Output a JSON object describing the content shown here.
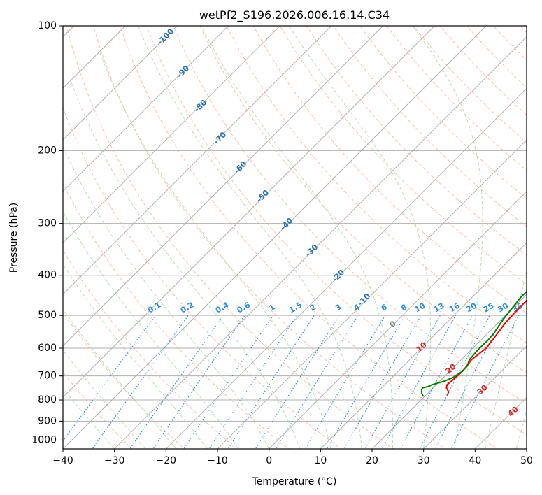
{
  "chart_data": {
    "type": "line",
    "title": "wetPf2_S196.2026.006.16.14.C34",
    "xlabel": "Temperature (°C)",
    "ylabel": "Pressure (hPa)",
    "xlim": [
      -40,
      50
    ],
    "ylim": [
      1050,
      100
    ],
    "x_ticks": [
      -40,
      -30,
      -20,
      -10,
      0,
      10,
      20,
      30,
      40,
      50
    ],
    "x_tick_labels": [
      "−40",
      "−30",
      "−20",
      "−10",
      "0",
      "10",
      "20",
      "30",
      "40",
      "50"
    ],
    "y_ticks": [
      100,
      200,
      300,
      400,
      500,
      600,
      700,
      800,
      900,
      1000
    ],
    "y_tick_labels": [
      "100",
      "200",
      "300",
      "400",
      "500",
      "600",
      "700",
      "800",
      "900",
      "1000"
    ],
    "isotherm_labels": [
      "-100",
      "-90",
      "-80",
      "-70",
      "-60",
      "-50",
      "-40",
      "-30",
      "-20",
      "-10"
    ],
    "mixing_ratio_labels": [
      "0.1",
      "0.2",
      "0.4",
      "0.6",
      "1",
      "1.5",
      "2",
      "3",
      "4",
      "6",
      "8",
      "10",
      "13",
      "16",
      "20",
      "25",
      "30",
      "36"
    ],
    "moist_adiabat_labels": [
      "0",
      "10",
      "20",
      "30",
      "40"
    ],
    "series": [
      {
        "name": "Temperature",
        "color": "#ff0000",
        "points": [
          [
            24.2,
            780
          ],
          [
            23.8,
            765
          ],
          [
            22.6,
            748
          ],
          [
            22.1,
            735
          ],
          [
            22.4,
            705
          ],
          [
            22.5,
            680
          ],
          [
            22.0,
            640
          ],
          [
            22.6,
            600
          ],
          [
            22.2,
            570
          ],
          [
            21.8,
            545
          ],
          [
            21.4,
            520
          ],
          [
            21.3,
            500
          ],
          [
            21.2,
            475
          ],
          [
            21.2,
            452
          ],
          [
            20.8,
            432
          ],
          [
            18.8,
            405
          ],
          [
            18.3,
            380
          ],
          [
            17.8,
            355
          ],
          [
            17.8,
            335
          ],
          [
            15.6,
            300
          ],
          [
            14.0,
            280
          ],
          [
            12.3,
            260
          ],
          [
            9.5,
            235
          ],
          [
            6.6,
            212
          ],
          [
            4.3,
            195
          ],
          [
            2.7,
            183
          ],
          [
            0.6,
            170
          ],
          [
            -1.1,
            160
          ],
          [
            -2.2,
            150
          ],
          [
            -3.1,
            140
          ],
          [
            -3.9,
            130
          ],
          [
            -4.3,
            120
          ],
          [
            -4.2,
            115
          ],
          [
            -3.9,
            110
          ],
          [
            -2.8,
            104
          ],
          [
            -2.0,
            100
          ]
        ]
      },
      {
        "name": "Dewpoint",
        "color": "#008000",
        "points": [
          [
            19.8,
            785
          ],
          [
            18.8,
            770
          ],
          [
            18.1,
            755
          ],
          [
            18.0,
            748
          ],
          [
            18.8,
            742
          ],
          [
            19.2,
            735
          ],
          [
            20.8,
            722
          ],
          [
            21.9,
            705
          ],
          [
            22.4,
            685
          ],
          [
            22.4,
            663
          ],
          [
            21.6,
            640
          ],
          [
            21.4,
            618
          ],
          [
            21.3,
            598
          ],
          [
            21.4,
            575
          ],
          [
            21.2,
            552
          ],
          [
            20.7,
            530
          ],
          [
            20.2,
            505
          ],
          [
            19.8,
            475
          ],
          [
            19.4,
            450
          ],
          [
            19.5,
            432
          ],
          [
            17.8,
            408
          ],
          [
            17.2,
            385
          ],
          [
            17.0,
            370
          ],
          [
            17.2,
            355
          ],
          [
            17.6,
            340
          ],
          [
            14.6,
            300
          ],
          [
            12.0,
            275
          ],
          [
            10.8,
            255
          ],
          [
            9.3,
            238
          ],
          [
            7.7,
            225
          ],
          [
            5.1,
            207
          ],
          [
            3.1,
            193
          ],
          [
            1.4,
            180
          ],
          [
            -0.4,
            170
          ],
          [
            -2.0,
            160
          ],
          [
            -3.2,
            150
          ],
          [
            -4.4,
            140
          ],
          [
            -5.3,
            130
          ],
          [
            -5.5,
            125
          ],
          [
            -6.1,
            118
          ],
          [
            -6.6,
            112
          ],
          [
            -7.1,
            106
          ],
          [
            -7.1,
            103
          ],
          [
            -7.0,
            100
          ]
        ]
      }
    ]
  }
}
